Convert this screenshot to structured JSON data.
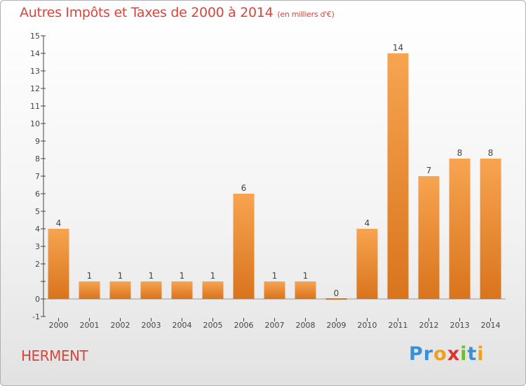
{
  "title": "Autres Impôts et Taxes de 2000 à 2014",
  "subtitle": "(en milliers d'€)",
  "location": "HERMENT",
  "brand": {
    "letters": [
      "P",
      "r",
      "o",
      "x",
      "i",
      "t",
      "i"
    ],
    "colors": [
      "#3a8fd6",
      "#3a8fd6",
      "#f0a020",
      "#d33",
      "#6bbf2b",
      "#3a8fd6",
      "#f0a020"
    ]
  },
  "colors": {
    "title": "#d7463c",
    "bar_light": "#f7a451",
    "bar_dark": "#d9741c",
    "axis": "#444444"
  },
  "chart_data": {
    "type": "bar",
    "categories": [
      "2000",
      "2001",
      "2002",
      "2003",
      "2004",
      "2005",
      "2006",
      "2007",
      "2008",
      "2009",
      "2010",
      "2011",
      "2012",
      "2013",
      "2014"
    ],
    "values": [
      4,
      1,
      1,
      1,
      1,
      1,
      6,
      1,
      1,
      0,
      4,
      14,
      7,
      8,
      8
    ],
    "ylim": [
      -1,
      15
    ],
    "yticks": [
      -1,
      0,
      1,
      2,
      3,
      4,
      5,
      6,
      7,
      8,
      9,
      10,
      11,
      12,
      13,
      14,
      15
    ],
    "ytick_labels": [
      "-1",
      "0",
      "",
      "2",
      "3",
      "4",
      "5",
      "6",
      "7",
      "8",
      "9",
      "10",
      "11",
      "12",
      "13",
      "14",
      "15"
    ],
    "grid": false,
    "legend": "none"
  }
}
